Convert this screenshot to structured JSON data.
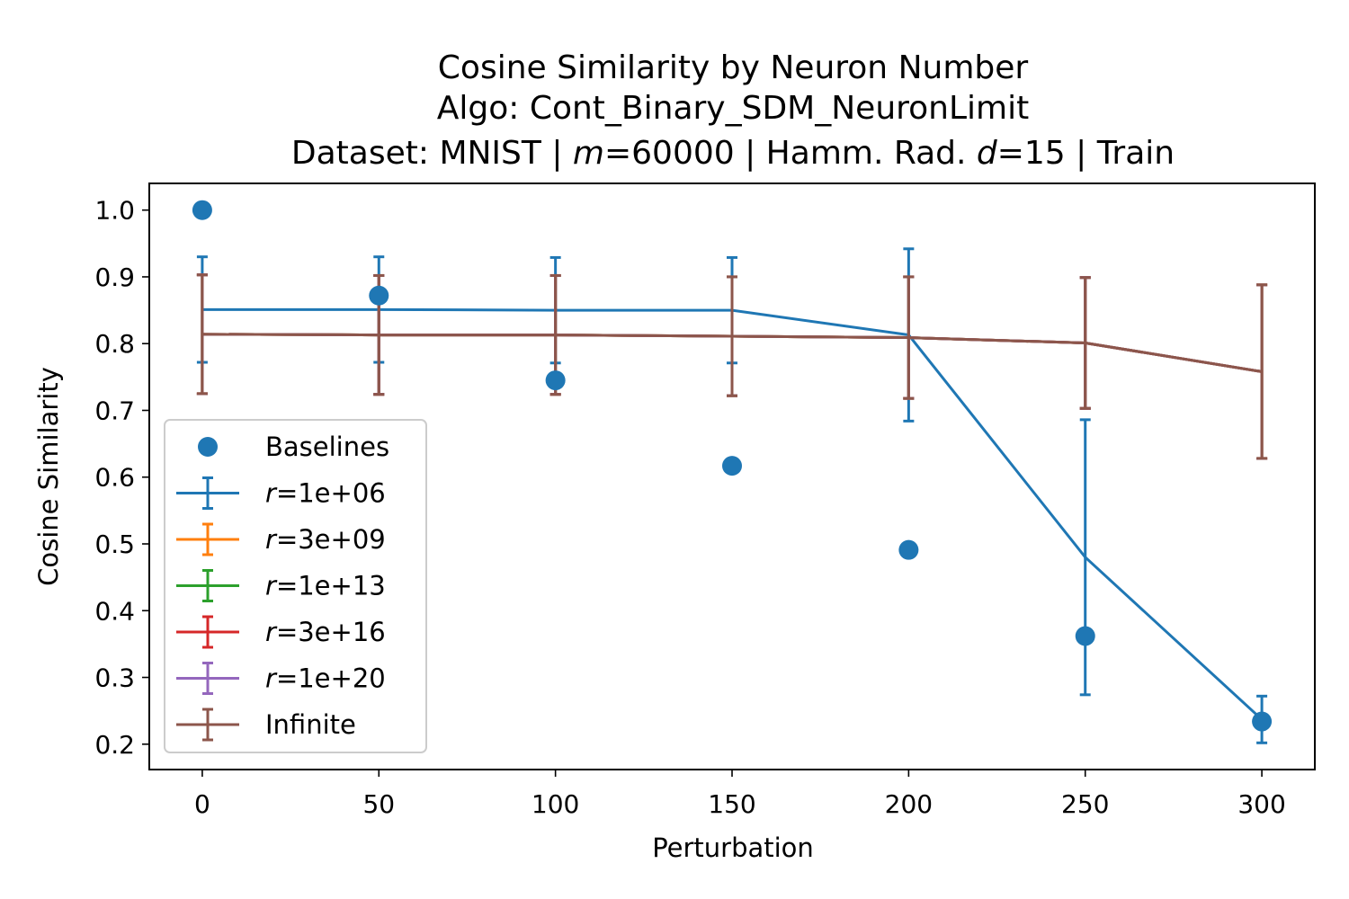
{
  "chart_data": {
    "type": "line",
    "title_lines": [
      "Cosine Similarity by Neuron Number",
      "Algo: Cont_Binary_SDM_NeuronLimit",
      "Dataset: MNIST | m=60000 | Hamm. Rad. d=15 | Train"
    ],
    "title_parts": {
      "line3_a": "Dataset: MNIST | ",
      "line3_m": "m",
      "line3_b": "=60000 | Hamm. Rad. ",
      "line3_d": "d",
      "line3_c": "=15 | Train"
    },
    "xlabel": "Perturbation",
    "ylabel": "Cosine Similarity",
    "x": [
      0,
      50,
      100,
      150,
      200,
      250,
      300
    ],
    "xticks": [
      0,
      50,
      100,
      150,
      200,
      250,
      300
    ],
    "yticks": [
      0.2,
      0.3,
      0.4,
      0.5,
      0.6,
      0.7,
      0.8,
      0.9,
      1.0
    ],
    "xlim": [
      -15,
      315
    ],
    "ylim": [
      0.162,
      1.04
    ],
    "baselines": {
      "name": "Baselines",
      "color": "#1f77b4",
      "values": [
        1.0,
        0.872,
        0.745,
        0.617,
        0.491,
        0.362,
        0.234
      ]
    },
    "series": [
      {
        "name": "r=1e+06",
        "var": "r",
        "rest": "=1e+06",
        "color": "#1f77b4",
        "values": [
          0.851,
          0.851,
          0.85,
          0.85,
          0.813,
          0.48,
          0.237
        ],
        "err": [
          0.079,
          0.079,
          0.079,
          0.079,
          0.129,
          0.206,
          0.035
        ]
      },
      {
        "name": "r=3e+09",
        "var": "r",
        "rest": "=3e+09",
        "color": "#ff7f0e",
        "values": [
          0.814,
          0.813,
          0.813,
          0.811,
          0.809,
          0.801,
          0.758
        ],
        "err": [
          0.089,
          0.089,
          0.089,
          0.089,
          0.091,
          0.098,
          0.13
        ]
      },
      {
        "name": "r=1e+13",
        "var": "r",
        "rest": "=1e+13",
        "color": "#2ca02c",
        "values": [
          0.814,
          0.813,
          0.813,
          0.811,
          0.809,
          0.801,
          0.758
        ],
        "err": [
          0.089,
          0.089,
          0.089,
          0.089,
          0.091,
          0.098,
          0.13
        ]
      },
      {
        "name": "r=3e+16",
        "var": "r",
        "rest": "=3e+16",
        "color": "#d62728",
        "values": [
          0.814,
          0.813,
          0.813,
          0.811,
          0.809,
          0.801,
          0.758
        ],
        "err": [
          0.089,
          0.089,
          0.089,
          0.089,
          0.091,
          0.098,
          0.13
        ]
      },
      {
        "name": "r=1e+20",
        "var": "r",
        "rest": "=1e+20",
        "color": "#9467bd",
        "values": [
          0.814,
          0.813,
          0.813,
          0.811,
          0.809,
          0.801,
          0.758
        ],
        "err": [
          0.089,
          0.089,
          0.089,
          0.089,
          0.091,
          0.098,
          0.13
        ]
      },
      {
        "name": "Infinite",
        "var": "",
        "rest": "Infinite",
        "color": "#8c564b",
        "values": [
          0.814,
          0.813,
          0.813,
          0.811,
          0.809,
          0.801,
          0.758
        ],
        "err": [
          0.089,
          0.089,
          0.089,
          0.089,
          0.091,
          0.098,
          0.13
        ]
      }
    ],
    "legend": {
      "placement": "lower-left"
    }
  }
}
